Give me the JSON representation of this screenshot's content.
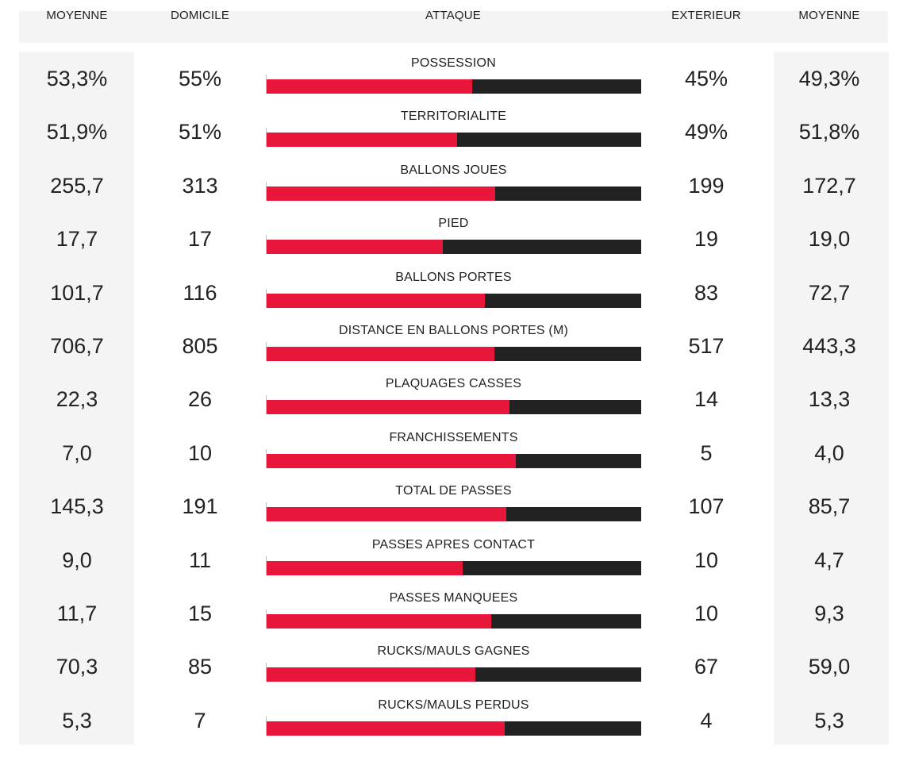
{
  "header": {
    "avg_home": "MOYENNE",
    "home": "DOMICILE",
    "center": "ATTAQUE",
    "away": "EXTERIEUR",
    "avg_away": "MOYENNE"
  },
  "colors": {
    "home_bar": "#e8163a",
    "away_bar": "#222222"
  },
  "rows": [
    {
      "label": "POSSESSION",
      "avg_home": "53,3%",
      "home": "55%",
      "away": "45%",
      "avg_away": "49,3%",
      "home_share": 0.55
    },
    {
      "label": "TERRITORIALITE",
      "avg_home": "51,9%",
      "home": "51%",
      "away": "49%",
      "avg_away": "51,8%",
      "home_share": 0.51
    },
    {
      "label": "BALLONS JOUES",
      "avg_home": "255,7",
      "home": "313",
      "away": "199",
      "avg_away": "172,7",
      "home_share": 0.611
    },
    {
      "label": "PIED",
      "avg_home": "17,7",
      "home": "17",
      "away": "19",
      "avg_away": "19,0",
      "home_share": 0.472
    },
    {
      "label": "BALLONS PORTES",
      "avg_home": "101,7",
      "home": "116",
      "away": "83",
      "avg_away": "72,7",
      "home_share": 0.583
    },
    {
      "label": "DISTANCE EN BALLONS PORTES (M)",
      "avg_home": "706,7",
      "home": "805",
      "away": "517",
      "avg_away": "443,3",
      "home_share": 0.609
    },
    {
      "label": "PLAQUAGES CASSES",
      "avg_home": "22,3",
      "home": "26",
      "away": "14",
      "avg_away": "13,3",
      "home_share": 0.65
    },
    {
      "label": "FRANCHISSEMENTS",
      "avg_home": "7,0",
      "home": "10",
      "away": "5",
      "avg_away": "4,0",
      "home_share": 0.667
    },
    {
      "label": "TOTAL DE PASSES",
      "avg_home": "145,3",
      "home": "191",
      "away": "107",
      "avg_away": "85,7",
      "home_share": 0.641
    },
    {
      "label": "PASSES APRES CONTACT",
      "avg_home": "9,0",
      "home": "11",
      "away": "10",
      "avg_away": "4,7",
      "home_share": 0.524
    },
    {
      "label": "PASSES MANQUEES",
      "avg_home": "11,7",
      "home": "15",
      "away": "10",
      "avg_away": "9,3",
      "home_share": 0.6
    },
    {
      "label": "RUCKS/MAULS GAGNES",
      "avg_home": "70,3",
      "home": "85",
      "away": "67",
      "avg_away": "59,0",
      "home_share": 0.559
    },
    {
      "label": "RUCKS/MAULS PERDUS",
      "avg_home": "5,3",
      "home": "7",
      "away": "4",
      "avg_away": "5,3",
      "home_share": 0.636
    }
  ],
  "chart_data": {
    "type": "bar",
    "categories": [
      "POSSESSION",
      "TERRITORIALITE",
      "BALLONS JOUES",
      "PIED",
      "BALLONS PORTES",
      "DISTANCE EN BALLONS PORTES (M)",
      "PLAQUAGES CASSES",
      "FRANCHISSEMENTS",
      "TOTAL DE PASSES",
      "PASSES APRES CONTACT",
      "PASSES MANQUEES",
      "RUCKS/MAULS GAGNES",
      "RUCKS/MAULS PERDUS"
    ],
    "series": [
      {
        "name": "DOMICILE",
        "values": [
          55,
          51,
          313,
          17,
          116,
          805,
          26,
          10,
          191,
          11,
          15,
          85,
          7
        ]
      },
      {
        "name": "EXTERIEUR",
        "values": [
          45,
          49,
          199,
          19,
          83,
          517,
          14,
          5,
          107,
          10,
          10,
          67,
          4
        ]
      }
    ],
    "title": "ATTAQUE"
  }
}
